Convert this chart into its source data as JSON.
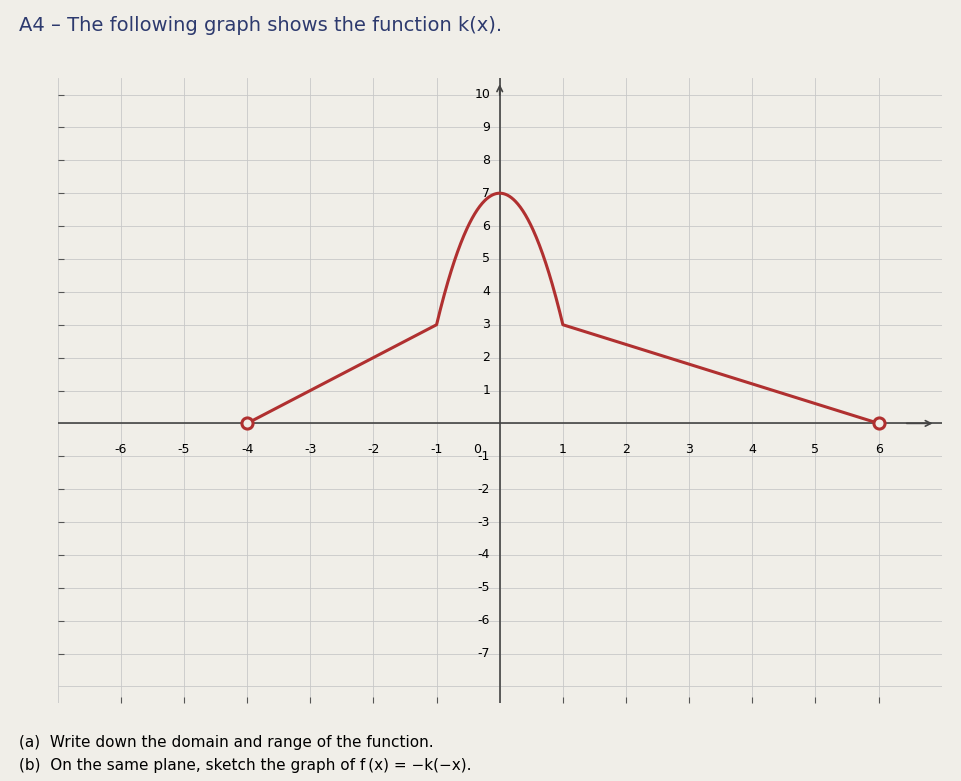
{
  "title": "A4 – The following graph shows the function k(x).",
  "subtitle_a": "(a)  Write down the domain and range of the function.",
  "subtitle_b": "(b)  On the same plane, sketch the graph of f (x) = −k(−x).",
  "xlim": [
    -7,
    7
  ],
  "ylim": [
    -8.5,
    10.5
  ],
  "xticks": [
    -6,
    -5,
    -4,
    -3,
    -2,
    -1,
    1,
    2,
    3,
    4,
    5,
    6
  ],
  "yticks": [
    -7,
    -6,
    -5,
    -4,
    -3,
    -2,
    -1,
    1,
    2,
    3,
    4,
    5,
    6,
    7,
    8,
    9,
    10
  ],
  "curve_color": "#b03030",
  "curve_linewidth": 2.2,
  "grid_color": "#c8c8c8",
  "bg_color": "#f0eee8",
  "open_circle_left_x": -4,
  "open_circle_left_y": 0,
  "open_circle_right_x": 6,
  "open_circle_right_y": 0,
  "font_size_title": 14,
  "font_size_labels": 11,
  "font_size_ticks": 9
}
